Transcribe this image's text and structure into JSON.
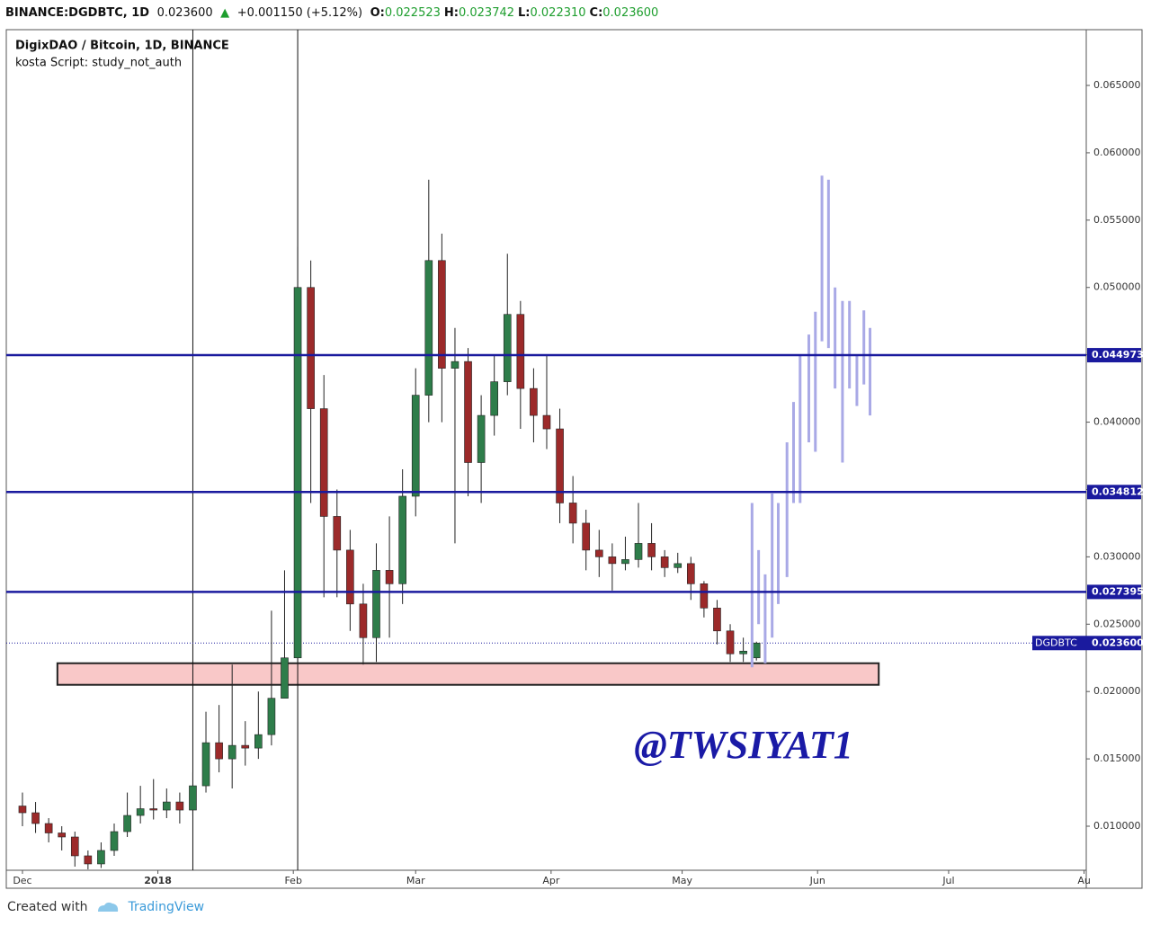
{
  "header": {
    "symbol": "BINANCE:DGDBTC, 1D",
    "last": "0.023600",
    "arrow": "▲",
    "change": "+0.001150 (+5.12%)",
    "ohlc": [
      {
        "label": "O:",
        "value": "0.022523"
      },
      {
        "label": "H:",
        "value": "0.023742"
      },
      {
        "label": "L:",
        "value": "0.022310"
      },
      {
        "label": "C:",
        "value": "0.023600"
      }
    ]
  },
  "chart_data": {
    "type": "candlestick",
    "title": "DigixDAO / Bitcoin, 1D, BINANCE",
    "subtitle": "kosta Script: study_not_auth",
    "annotation": "@TWSIYAT1",
    "x": [
      0,
      3,
      6,
      9,
      12,
      15,
      18,
      21,
      24,
      27,
      30,
      33,
      36,
      39,
      42,
      45,
      48,
      51,
      54,
      57,
      60,
      63,
      66,
      69,
      72,
      75,
      78,
      81,
      84,
      87,
      90,
      93,
      96,
      99,
      102,
      105,
      108,
      111,
      114,
      117,
      120,
      123,
      126,
      129,
      132,
      135,
      138,
      141,
      144,
      147,
      150,
      153,
      156,
      159,
      162,
      165,
      168
    ],
    "open": [
      0.0115,
      0.011,
      0.0102,
      0.0095,
      0.0092,
      0.0078,
      0.0072,
      0.0082,
      0.0096,
      0.0108,
      0.0113,
      0.0112,
      0.0118,
      0.0112,
      0.013,
      0.0162,
      0.015,
      0.016,
      0.0158,
      0.0168,
      0.0195,
      0.0225,
      0.05,
      0.041,
      0.033,
      0.0305,
      0.0265,
      0.024,
      0.029,
      0.028,
      0.0345,
      0.042,
      0.052,
      0.044,
      0.0445,
      0.037,
      0.0405,
      0.043,
      0.048,
      0.0425,
      0.0405,
      0.0395,
      0.034,
      0.0325,
      0.0305,
      0.03,
      0.0295,
      0.0298,
      0.031,
      0.03,
      0.0292,
      0.0295,
      0.028,
      0.0262,
      0.0245,
      0.0228,
      0.0225
    ],
    "high": [
      0.0125,
      0.0118,
      0.0106,
      0.01,
      0.0096,
      0.0082,
      0.0088,
      0.0102,
      0.0125,
      0.013,
      0.0135,
      0.0128,
      0.0125,
      0.014,
      0.0185,
      0.019,
      0.022,
      0.0178,
      0.02,
      0.026,
      0.029,
      0.053,
      0.052,
      0.0435,
      0.035,
      0.032,
      0.028,
      0.031,
      0.033,
      0.0365,
      0.044,
      0.058,
      0.054,
      0.047,
      0.0455,
      0.042,
      0.045,
      0.0525,
      0.049,
      0.044,
      0.045,
      0.041,
      0.036,
      0.0335,
      0.032,
      0.031,
      0.0315,
      0.034,
      0.0325,
      0.0305,
      0.0303,
      0.03,
      0.0282,
      0.0268,
      0.025,
      0.024,
      0.0237
    ],
    "low": [
      0.01,
      0.0095,
      0.0088,
      0.0082,
      0.007,
      0.0068,
      0.0069,
      0.0078,
      0.0092,
      0.0102,
      0.0105,
      0.0106,
      0.0102,
      0.0108,
      0.0125,
      0.014,
      0.0128,
      0.0145,
      0.015,
      0.016,
      0.0195,
      0.022,
      0.034,
      0.027,
      0.027,
      0.0245,
      0.022,
      0.0222,
      0.024,
      0.0265,
      0.033,
      0.04,
      0.04,
      0.031,
      0.0345,
      0.034,
      0.039,
      0.042,
      0.0395,
      0.0385,
      0.038,
      0.0325,
      0.031,
      0.029,
      0.0285,
      0.0275,
      0.029,
      0.0292,
      0.029,
      0.0285,
      0.0288,
      0.0268,
      0.0255,
      0.0235,
      0.0222,
      0.0222,
      0.0223
    ],
    "close": [
      0.011,
      0.0102,
      0.0095,
      0.0092,
      0.0078,
      0.0072,
      0.0082,
      0.0096,
      0.0108,
      0.0113,
      0.0112,
      0.0118,
      0.0112,
      0.013,
      0.0162,
      0.015,
      0.016,
      0.0158,
      0.0168,
      0.0195,
      0.0225,
      0.05,
      0.041,
      0.033,
      0.0305,
      0.0265,
      0.024,
      0.029,
      0.028,
      0.0345,
      0.042,
      0.052,
      0.044,
      0.0445,
      0.037,
      0.0405,
      0.043,
      0.048,
      0.0425,
      0.0405,
      0.0395,
      0.034,
      0.0325,
      0.0305,
      0.03,
      0.0295,
      0.0298,
      0.031,
      0.03,
      0.0292,
      0.0295,
      0.028,
      0.0262,
      0.0245,
      0.0228,
      0.023,
      0.0236
    ],
    "up_color": "#2e7d4a",
    "down_color": "#9c2a2a",
    "projection": {
      "color": "#a9a9e6",
      "x": [
        167,
        168.5,
        170,
        171.6,
        173,
        175,
        176.5,
        178,
        180,
        181.5,
        183,
        184.5,
        186,
        187.7,
        189.3,
        191,
        192.6,
        194
      ],
      "low": [
        0.0218,
        0.025,
        0.0221,
        0.024,
        0.0265,
        0.0285,
        0.034,
        0.034,
        0.0385,
        0.0378,
        0.046,
        0.0455,
        0.0425,
        0.037,
        0.0425,
        0.0412,
        0.0428,
        0.0405
      ],
      "high": [
        0.034,
        0.0305,
        0.0287,
        0.0347,
        0.034,
        0.0385,
        0.0415,
        0.045,
        0.0465,
        0.0482,
        0.0583,
        0.058,
        0.05,
        0.049,
        0.049,
        0.045,
        0.0483,
        0.047
      ]
    },
    "levels": [
      0.044973,
      0.034812,
      0.027395
    ],
    "level_color": "#1a1a9e",
    "current": {
      "name": "DGDBTC",
      "value": 0.0236,
      "label": "0.023600"
    },
    "zone": {
      "x": [
        8,
        196
      ],
      "y": [
        0.0205,
        0.0221
      ],
      "color": "#f9c8c8"
    },
    "vlines": [
      39,
      63
    ],
    "xlim": [
      -3.7,
      243.5
    ],
    "ylim": [
      0.00673,
      0.06914
    ],
    "xticks": [
      {
        "value": 0,
        "label": "Dec"
      },
      {
        "value": 31,
        "label": "2018"
      },
      {
        "value": 62,
        "label": "Feb"
      },
      {
        "value": 90,
        "label": "Mar"
      },
      {
        "value": 121,
        "label": "Apr"
      },
      {
        "value": 151,
        "label": "May"
      },
      {
        "value": 182,
        "label": "Jun"
      },
      {
        "value": 212,
        "label": "Jul"
      },
      {
        "value": 243,
        "label": "Au"
      }
    ],
    "yticks": [
      {
        "value": 0.01,
        "label": "0.010000"
      },
      {
        "value": 0.015,
        "label": "0.015000"
      },
      {
        "value": 0.02,
        "label": "0.020000"
      },
      {
        "value": 0.025,
        "label": "0.025000"
      },
      {
        "value": 0.03,
        "label": "0.030000"
      },
      {
        "value": 0.035,
        "label": "0.035000"
      },
      {
        "value": 0.04,
        "label": "0.040000"
      },
      {
        "value": 0.045,
        "label": "0.045000"
      },
      {
        "value": 0.05,
        "label": "0.050000"
      },
      {
        "value": 0.055,
        "label": "0.055000"
      },
      {
        "value": 0.06,
        "label": "0.060000"
      },
      {
        "value": 0.065,
        "label": "0.065000"
      }
    ]
  },
  "footer": {
    "prefix": "Created with",
    "brand": "TradingView"
  }
}
